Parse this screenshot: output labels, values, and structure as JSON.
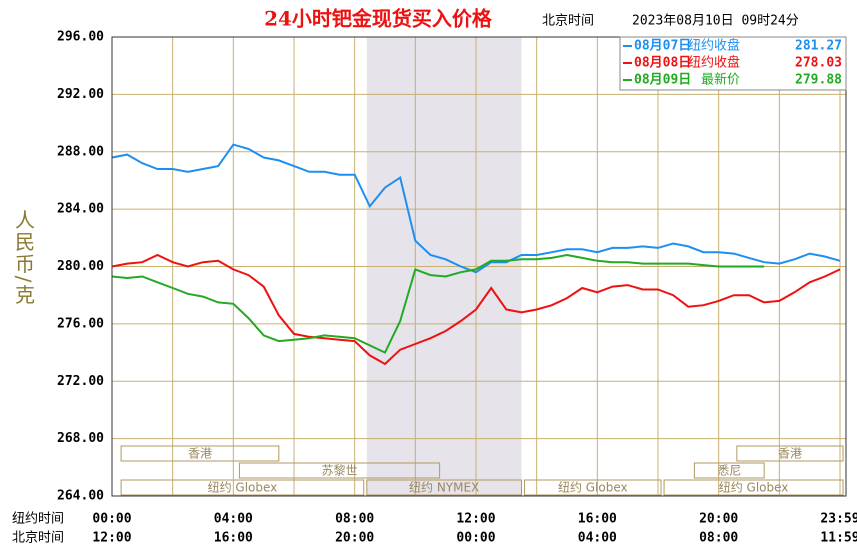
{
  "chart_data": {
    "type": "line",
    "title": "24小时钯金现货买入价格",
    "time_zone": "北京时间",
    "timestamp": "2023年08月10日 09时24分",
    "ylabel": "人民币/克",
    "x_row_labels": [
      "纽约时间",
      "北京时间"
    ],
    "xlim": [
      0,
      24
    ],
    "xticks": [
      {
        "value": 0,
        "label": "00:00"
      },
      {
        "value": 4,
        "label": "04:00"
      },
      {
        "value": 8,
        "label": "08:00"
      },
      {
        "value": 12,
        "label": "12:00"
      },
      {
        "value": 16,
        "label": "16:00"
      },
      {
        "value": 20,
        "label": "20:00"
      },
      {
        "value": 24,
        "label": "23:59"
      }
    ],
    "x2ticks": [
      {
        "value": 0,
        "label": "12:00"
      },
      {
        "value": 4,
        "label": "16:00"
      },
      {
        "value": 8,
        "label": "20:00"
      },
      {
        "value": 12,
        "label": "00:00"
      },
      {
        "value": 16,
        "label": "04:00"
      },
      {
        "value": 20,
        "label": "08:00"
      },
      {
        "value": 24,
        "label": "11:59"
      }
    ],
    "ylim": [
      264,
      296
    ],
    "yticks": [
      {
        "value": 264,
        "label": "264.00"
      },
      {
        "value": 268,
        "label": "268.00"
      },
      {
        "value": 272,
        "label": "272.00"
      },
      {
        "value": 276,
        "label": "276.00"
      },
      {
        "value": 280,
        "label": "280.00"
      },
      {
        "value": 284,
        "label": "284.00"
      },
      {
        "value": 288,
        "label": "288.00"
      },
      {
        "value": 292,
        "label": "292.00"
      },
      {
        "value": 296,
        "label": "296.00"
      }
    ],
    "grid": true,
    "x": [
      0,
      0.5,
      1,
      1.5,
      2,
      2.5,
      3,
      3.5,
      4,
      4.5,
      5,
      5.5,
      6,
      6.5,
      7,
      7.5,
      8,
      8.5,
      9,
      9.5,
      10,
      10.5,
      11,
      11.5,
      12,
      12.5,
      13,
      13.5,
      14,
      14.5,
      15,
      15.5,
      16,
      16.5,
      17,
      17.5,
      18,
      18.5,
      19,
      19.5,
      20,
      20.5,
      21,
      21.5,
      22,
      22.5,
      23,
      23.5,
      24
    ],
    "series": [
      {
        "name": "08月07日",
        "legend_label": "纽约收盘",
        "legend_value": 281.27,
        "color": "#1e8ff0",
        "values": [
          287.6,
          287.8,
          287.2,
          286.8,
          286.8,
          286.6,
          286.8,
          287.0,
          288.5,
          288.2,
          287.6,
          287.4,
          287.0,
          286.6,
          286.6,
          286.4,
          286.4,
          284.2,
          285.5,
          286.2,
          281.8,
          280.8,
          280.5,
          280.0,
          279.6,
          280.3,
          280.3,
          280.8,
          280.8,
          281.0,
          281.2,
          281.2,
          281.0,
          281.3,
          281.3,
          281.4,
          281.3,
          281.6,
          281.4,
          281.0,
          281.0,
          280.9,
          280.6,
          280.3,
          280.2,
          280.5,
          280.9,
          280.7,
          280.4
        ]
      },
      {
        "name": "08月08日",
        "legend_label": "纽约收盘",
        "legend_value": 278.03,
        "color": "#ee1111",
        "values": [
          280.0,
          280.2,
          280.3,
          280.8,
          280.3,
          280.0,
          280.3,
          280.4,
          279.8,
          279.4,
          278.6,
          276.6,
          275.3,
          275.1,
          275.0,
          274.9,
          274.8,
          273.8,
          273.2,
          274.2,
          274.6,
          275.0,
          275.5,
          276.2,
          277.0,
          278.5,
          277.0,
          276.8,
          277.0,
          277.3,
          277.8,
          278.5,
          278.2,
          278.6,
          278.7,
          278.4,
          278.4,
          278.0,
          277.2,
          277.3,
          277.6,
          278.0,
          278.0,
          277.5,
          277.6,
          278.2,
          278.9,
          279.3,
          279.8
        ]
      },
      {
        "name": "08月09日",
        "legend_label": "最新价",
        "legend_value": 279.88,
        "color": "#22aa22",
        "values": [
          279.3,
          279.2,
          279.3,
          278.9,
          278.5,
          278.1,
          277.9,
          277.5,
          277.4,
          276.4,
          275.2,
          274.8,
          274.9,
          275.0,
          275.2,
          275.1,
          275.0,
          274.5,
          274.0,
          276.2,
          279.8,
          279.4,
          279.3,
          279.6,
          279.8,
          280.4,
          280.4,
          280.5,
          280.5,
          280.6,
          280.8,
          280.6,
          280.4,
          280.3,
          280.3,
          280.2,
          280.2,
          280.2,
          280.2,
          280.1,
          280.0,
          280.0,
          280.0,
          280.0,
          null,
          null,
          null,
          null,
          null
        ]
      }
    ],
    "session_rows": [
      [
        {
          "label": "香港",
          "start": 0.3,
          "end": 5.5
        },
        {
          "label": "香港",
          "start": 20.6,
          "end": 24.1
        }
      ],
      [
        {
          "label": "苏黎世",
          "start": 4.2,
          "end": 10.8
        },
        {
          "label": "悉尼",
          "start": 19.2,
          "end": 21.5
        }
      ],
      [
        {
          "label": "纽约 Globex",
          "start": 0.3,
          "end": 8.3
        },
        {
          "label": "纽约 NYMEX",
          "start": 8.4,
          "end": 13.5,
          "shade": true
        },
        {
          "label": "纽约 Globex",
          "start": 13.6,
          "end": 18.1
        },
        {
          "label": "纽约 Globex",
          "start": 18.2,
          "end": 24.1
        }
      ]
    ]
  }
}
